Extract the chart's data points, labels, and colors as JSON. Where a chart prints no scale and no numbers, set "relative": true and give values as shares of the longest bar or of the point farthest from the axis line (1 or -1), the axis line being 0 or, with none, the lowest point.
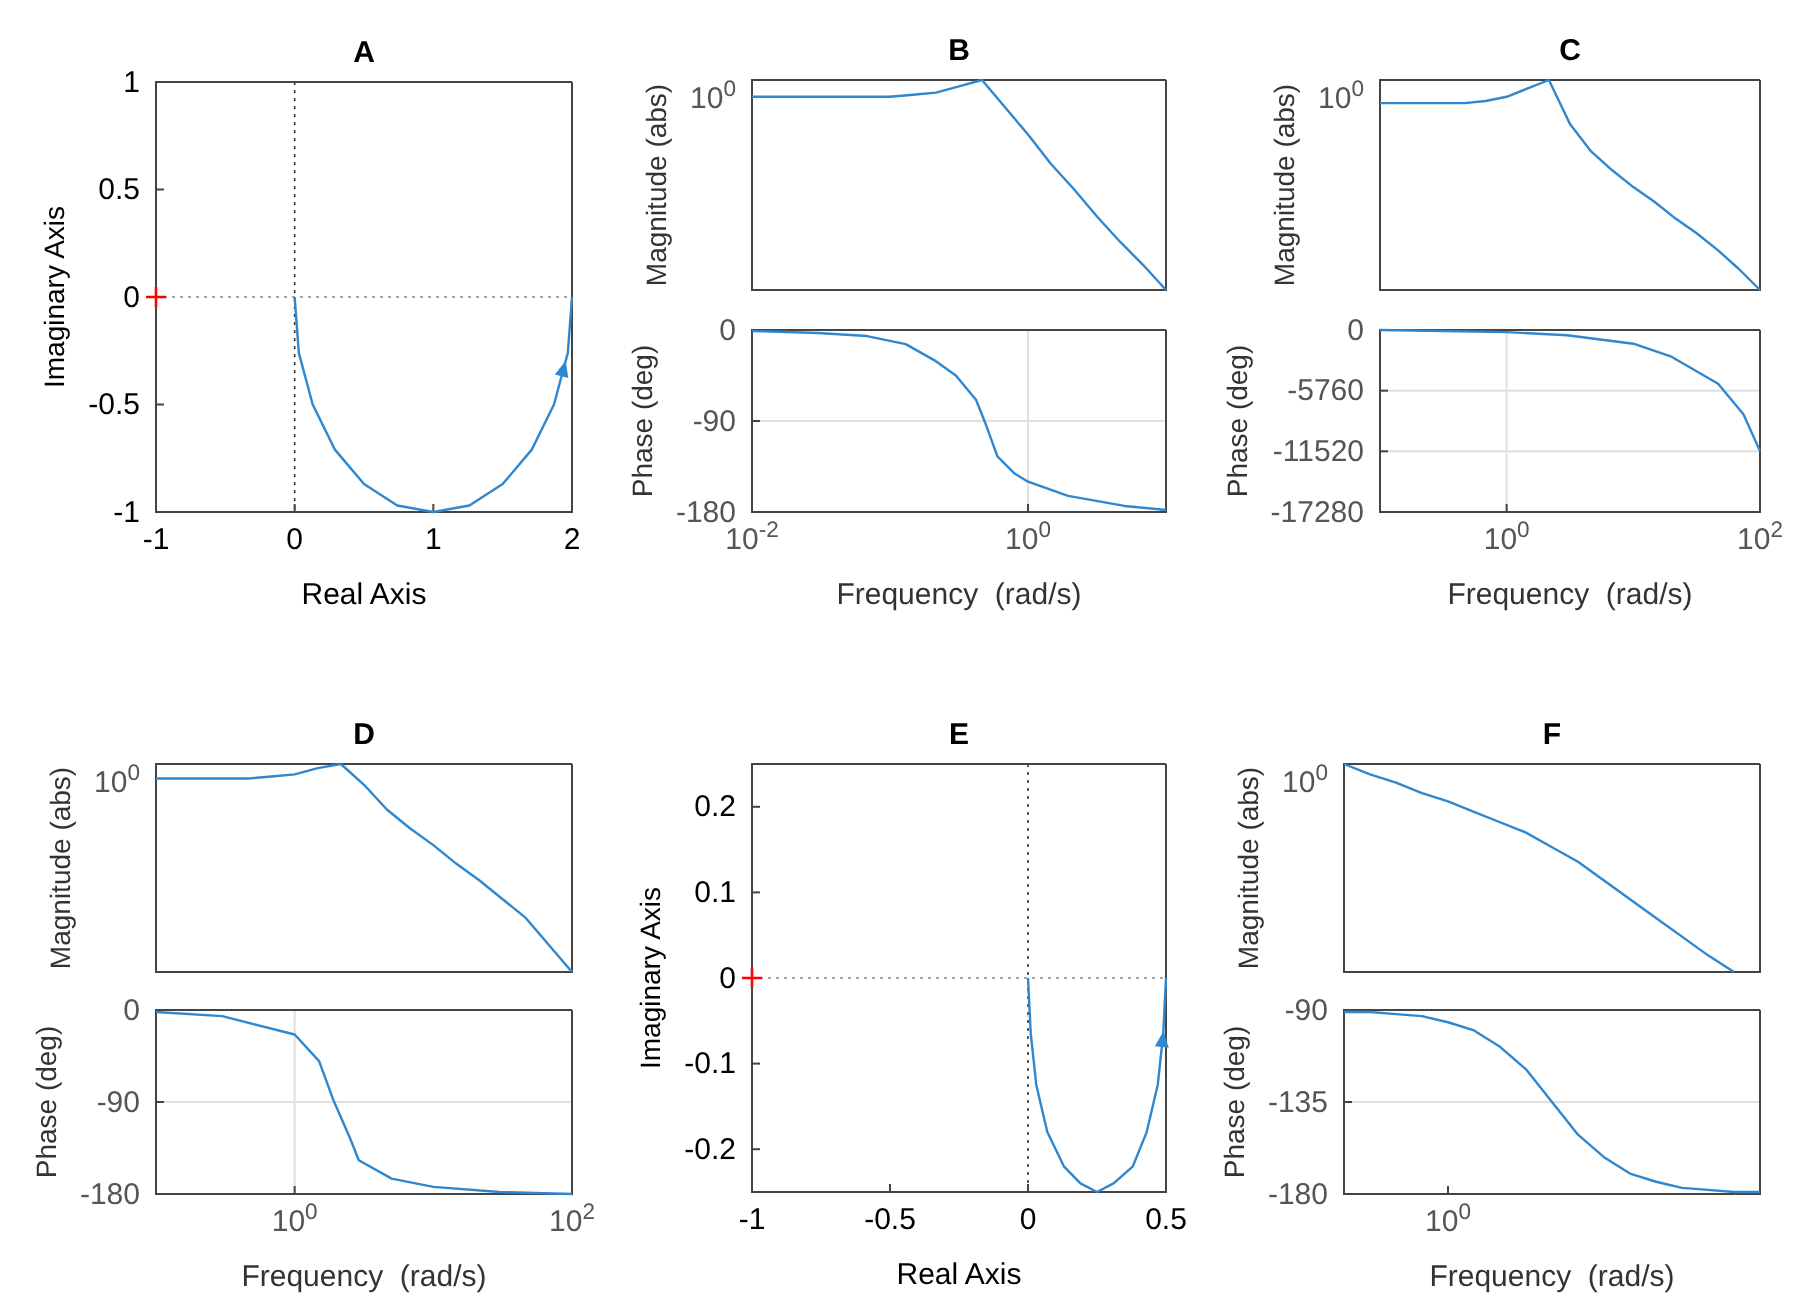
{
  "chart_data": [
    {
      "type": "line",
      "title": "A",
      "xlabel": "Real Axis",
      "ylabel": "Imaginary Axis",
      "xlim": [
        -1,
        2
      ],
      "ylim": [
        -1,
        1
      ],
      "xticks": [
        -1,
        0,
        1,
        2
      ],
      "yticks": [
        -1,
        -0.5,
        0,
        0.5,
        1
      ],
      "ref_lines": [
        {
          "axis": "x",
          "value": 0,
          "line_style": "dotted",
          "color": "#333333"
        },
        {
          "axis": "y",
          "value": 0,
          "line_style": "dotted",
          "color": "#888888"
        }
      ],
      "series": [
        {
          "type": "line",
          "color": "#2f87d0",
          "x": [
            0,
            0.03,
            0.13,
            0.29,
            0.5,
            0.74,
            1,
            1.26,
            1.5,
            1.71,
            1.87,
            1.97,
            2
          ],
          "values": [
            0,
            -0.26,
            -0.5,
            -0.71,
            -0.87,
            -0.97,
            -1,
            -0.97,
            -0.87,
            -0.71,
            -0.5,
            -0.26,
            0
          ]
        },
        {
          "type": "scatter",
          "color": "#ff0000",
          "marker": "cross",
          "x": [
            -1
          ],
          "values": [
            0
          ]
        }
      ]
    },
    {
      "type": "line",
      "title": "B",
      "ylabel": "Magnitude (abs)",
      "relative": true,
      "annotations": [
        "10$^{0}$"
      ],
      "categories": [
        null,
        null,
        null,
        null,
        null,
        null,
        null,
        null,
        null,
        null,
        null,
        null,
        null,
        null,
        null,
        null,
        null,
        null,
        null
      ],
      "series": [
        {
          "type": "line",
          "color": "#2f87d0",
          "values": [
            0.92,
            0.92,
            0.92,
            0.92,
            0.92,
            0.92,
            0.92,
            0.93,
            0.94,
            0.97,
            1,
            0.87,
            0.74,
            0.6,
            0.48,
            0.35,
            0.23,
            0.12,
            0
          ]
        }
      ]
    },
    {
      "type": "line",
      "xlabel": "Frequency  (rad/s)",
      "ylabel": "Phase (deg)",
      "log": "x",
      "xlim": [
        0.01,
        10
      ],
      "ylim": [
        -180,
        0
      ],
      "xticks": [
        {
          "value": 0.01,
          "label": "10$^{-2}$"
        },
        {
          "value": 1,
          "label": "10$^{0}$"
        }
      ],
      "yticks": [
        -180,
        -90,
        0
      ],
      "grid": true,
      "series": [
        {
          "type": "line",
          "color": "#2f87d0",
          "x": [
            0.01,
            0.03,
            0.068,
            0.13,
            0.21,
            0.3,
            0.42,
            0.5,
            0.6,
            0.8,
            1,
            1.95,
            5,
            10
          ],
          "values": [
            -1,
            -3,
            -6,
            -14,
            -30,
            -45,
            -69,
            -95,
            -125,
            -142,
            -150,
            -164,
            -174,
            -178
          ]
        }
      ]
    },
    {
      "type": "line",
      "title": "C",
      "ylabel": "Magnitude (abs)",
      "relative": true,
      "annotations": [
        "10$^{0}$"
      ],
      "categories": [
        null,
        null,
        null,
        null,
        null,
        null,
        null,
        null,
        null,
        null,
        null,
        null,
        null,
        null,
        null,
        null,
        null,
        null,
        null
      ],
      "series": [
        {
          "type": "line",
          "color": "#2f87d0",
          "values": [
            0.89,
            0.89,
            0.89,
            0.89,
            0.89,
            0.9,
            0.92,
            0.96,
            1,
            0.79,
            0.66,
            0.57,
            0.49,
            0.42,
            0.34,
            0.27,
            0.19,
            0.1,
            0
          ]
        }
      ]
    },
    {
      "type": "line",
      "xlabel": "Frequency  (rad/s)",
      "ylabel": "Phase (deg)",
      "log": "x",
      "xlim": [
        0.1,
        100
      ],
      "ylim": [
        -17280,
        0
      ],
      "xticks": [
        {
          "value": 1,
          "label": "10$^{0}$"
        },
        {
          "value": 100,
          "label": "10$^{2}$"
        }
      ],
      "yticks": [
        -17280,
        -11520,
        -5760,
        0
      ],
      "grid": true,
      "series": [
        {
          "type": "line",
          "color": "#2f87d0",
          "x": [
            0.1,
            1,
            3,
            10,
            19.7,
            46.7,
            74,
            100
          ],
          "values": [
            0,
            -200,
            -500,
            -1300,
            -2500,
            -5100,
            -8000,
            -11500
          ]
        }
      ]
    },
    {
      "type": "line",
      "title": "D",
      "ylabel": "Magnitude (abs)",
      "relative": true,
      "annotations": [
        "10$^{0}$"
      ],
      "categories": [
        null,
        null,
        null,
        null,
        null,
        null,
        null,
        null,
        null,
        null,
        null,
        null,
        null,
        null,
        null,
        null,
        null,
        null,
        null
      ],
      "series": [
        {
          "type": "line",
          "color": "#2f87d0",
          "values": [
            0.93,
            0.93,
            0.93,
            0.93,
            0.93,
            0.94,
            0.95,
            0.98,
            1,
            0.9,
            0.78,
            0.69,
            0.61,
            0.52,
            0.44,
            0.35,
            0.26,
            0.13,
            0
          ]
        }
      ]
    },
    {
      "type": "line",
      "xlabel": "Frequency  (rad/s)",
      "ylabel": "Phase (deg)",
      "log": "x",
      "xlim": [
        0.1,
        100
      ],
      "ylim": [
        -180,
        0
      ],
      "xticks": [
        {
          "value": 1,
          "label": "10$^{0}$"
        },
        {
          "value": 100,
          "label": "10$^{2}$"
        }
      ],
      "yticks": [
        -180,
        -90,
        0
      ],
      "grid": true,
      "series": [
        {
          "type": "line",
          "color": "#2f87d0",
          "x": [
            0.1,
            0.3,
            1,
            1.5,
            1.9,
            2.5,
            2.9,
            5,
            10,
            30,
            100
          ],
          "values": [
            -2,
            -6,
            -24,
            -50,
            -88,
            -125,
            -147,
            -165,
            -173,
            -178,
            -180
          ]
        }
      ]
    },
    {
      "type": "line",
      "title": "E",
      "xlabel": "Real Axis",
      "ylabel": "Imaginary Axis",
      "xlim": [
        -1,
        0.5
      ],
      "ylim": [
        -0.25,
        0.25
      ],
      "xticks": [
        -1,
        -0.5,
        0,
        0.5
      ],
      "yticks": [
        -0.2,
        -0.1,
        0,
        0.1,
        0.2
      ],
      "ref_lines": [
        {
          "axis": "x",
          "value": 0,
          "line_style": "dotted",
          "color": "#333333"
        },
        {
          "axis": "y",
          "value": 0,
          "line_style": "dotted",
          "color": "#888888"
        }
      ],
      "series": [
        {
          "type": "line",
          "color": "#2f87d0",
          "x": [
            0,
            0.01,
            0.03,
            0.07,
            0.13,
            0.19,
            0.25,
            0.31,
            0.38,
            0.43,
            0.47,
            0.49,
            0.5
          ],
          "values": [
            0,
            -0.065,
            -0.125,
            -0.18,
            -0.22,
            -0.24,
            -0.25,
            -0.24,
            -0.22,
            -0.18,
            -0.125,
            -0.065,
            0
          ]
        },
        {
          "type": "scatter",
          "color": "#ff0000",
          "marker": "cross",
          "x": [
            -1
          ],
          "values": [
            0
          ]
        }
      ]
    },
    {
      "type": "line",
      "title": "F",
      "ylabel": "Magnitude (abs)",
      "relative": true,
      "annotations": [
        "10$^{0}$"
      ],
      "categories": [
        null,
        null,
        null,
        null,
        null,
        null,
        null,
        null,
        null,
        null,
        null,
        null,
        null,
        null,
        null,
        null,
        null
      ],
      "series": [
        {
          "type": "line",
          "color": "#2f87d0",
          "values": [
            1,
            0.95,
            0.91,
            0.86,
            0.82,
            0.77,
            0.72,
            0.67,
            0.6,
            0.53,
            0.44,
            0.35,
            0.26,
            0.17,
            0.08,
            0,
            null
          ]
        }
      ]
    },
    {
      "type": "line",
      "xlabel": "Frequency  (rad/s)",
      "ylabel": "Phase (deg)",
      "ylim": [
        -180,
        -90
      ],
      "yticks": [
        -180,
        -135,
        -90
      ],
      "grid": "y",
      "categories": [
        null,
        null,
        null,
        null,
        "10$^{0}$",
        null,
        null,
        null,
        null,
        null,
        null,
        null,
        null,
        null,
        null,
        null,
        null
      ],
      "series": [
        {
          "type": "line",
          "color": "#2f87d0",
          "values": [
            -91,
            -91,
            -92,
            -93,
            -96,
            -100,
            -108,
            -119,
            -135,
            -151,
            -162,
            -170,
            -174,
            -177,
            -178,
            -179,
            -179
          ]
        }
      ]
    }
  ]
}
